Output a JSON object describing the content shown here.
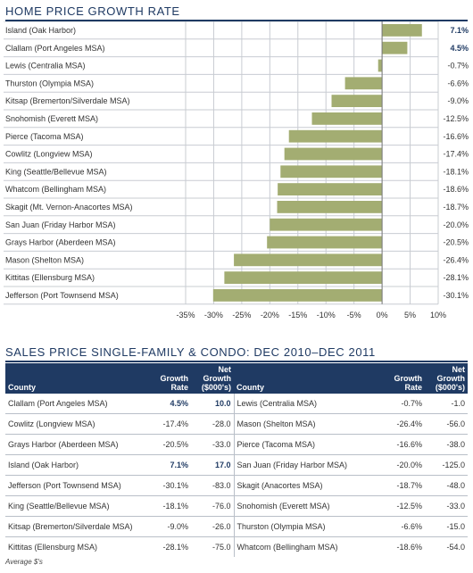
{
  "chart_title": "HOME PRICE GROWTH RATE",
  "chart_data": {
    "type": "bar",
    "orientation": "horizontal",
    "categories": [
      "Island (Oak Harbor)",
      "Clallam (Port Angeles MSA)",
      "Lewis (Centralia MSA)",
      "Thurston (Olympia MSA)",
      "Kitsap (Bremerton/Silverdale MSA)",
      "Snohomish (Everett MSA)",
      "Pierce (Tacoma MSA)",
      "Cowlitz (Longview MSA)",
      "King (Seattle/Bellevue MSA)",
      "Whatcom (Bellingham MSA)",
      "Skagit (Mt. Vernon-Anacortes MSA)",
      "San Juan (Friday Harbor MSA)",
      "Grays Harbor (Aberdeen MSA)",
      "Mason (Shelton MSA)",
      "Kittitas (Ellensburg MSA)",
      "Jefferson (Port Townsend MSA)"
    ],
    "values": [
      7.1,
      4.5,
      -0.7,
      -6.6,
      -9.0,
      -12.5,
      -16.6,
      -17.4,
      -18.1,
      -18.6,
      -18.7,
      -20.0,
      -20.5,
      -26.4,
      -28.1,
      -30.1
    ],
    "value_labels": [
      "7.1%",
      "4.5%",
      "-0.7%",
      "-6.6%",
      "-9.0%",
      "-12.5%",
      "-16.6%",
      "-17.4%",
      "-18.1%",
      "-18.6%",
      "-18.7%",
      "-20.0%",
      "-20.5%",
      "-26.4%",
      "-28.1%",
      "-30.1%"
    ],
    "xlim": [
      -35,
      10
    ],
    "xticks": [
      -35,
      -30,
      -25,
      -20,
      -15,
      -10,
      -5,
      0,
      5,
      10
    ],
    "xtick_labels": [
      "-35%",
      "-30%",
      "-25%",
      "-20%",
      "-15%",
      "-10%",
      "-5%",
      "0%",
      "5%",
      "10%"
    ],
    "bar_color": "#a3ad72",
    "grid": true,
    "legend": "none"
  },
  "table": {
    "title": "SALES PRICE SINGLE-FAMILY & CONDO: DEC 2010–DEC 2011",
    "headers": {
      "county": "County",
      "growth_l1": "Growth",
      "growth_l2": "Rate",
      "net_l1": "Net",
      "net_l2": "Growth",
      "net_l3": "($000's)"
    },
    "rows": [
      {
        "left": {
          "county": "Clallam (Port Angeles MSA)",
          "rate": "4.5%",
          "net": "10.0",
          "bold": true
        },
        "right": {
          "county": "Lewis (Centralia MSA)",
          "rate": "-0.7%",
          "net": "-1.0",
          "bold": false
        }
      },
      {
        "left": {
          "county": "Cowlitz (Longview MSA)",
          "rate": "-17.4%",
          "net": "-28.0",
          "bold": false
        },
        "right": {
          "county": "Mason (Shelton MSA)",
          "rate": "-26.4%",
          "net": "-56.0",
          "bold": false
        }
      },
      {
        "left": {
          "county": "Grays Harbor (Aberdeen MSA)",
          "rate": "-20.5%",
          "net": "-33.0",
          "bold": false
        },
        "right": {
          "county": "Pierce (Tacoma MSA)",
          "rate": "-16.6%",
          "net": "-38.0",
          "bold": false
        }
      },
      {
        "left": {
          "county": "Island (Oak Harbor)",
          "rate": "7.1%",
          "net": "17.0",
          "bold": true
        },
        "right": {
          "county": "San Juan (Friday Harbor MSA)",
          "rate": "-20.0%",
          "net": "-125.0",
          "bold": false
        }
      },
      {
        "left": {
          "county": "Jefferson (Port Townsend MSA)",
          "rate": "-30.1%",
          "net": "-83.0",
          "bold": false
        },
        "right": {
          "county": "Skagit (Anacortes MSA)",
          "rate": "-18.7%",
          "net": "-48.0",
          "bold": false
        }
      },
      {
        "left": {
          "county": "King (Seattle/Bellevue MSA)",
          "rate": "-18.1%",
          "net": "-76.0",
          "bold": false
        },
        "right": {
          "county": "Snohomish (Everett MSA)",
          "rate": "-12.5%",
          "net": "-33.0",
          "bold": false
        }
      },
      {
        "left": {
          "county": "Kitsap (Bremerton/Silverdale MSA)",
          "rate": "-9.0%",
          "net": "-26.0",
          "bold": false
        },
        "right": {
          "county": "Thurston (Olympia MSA)",
          "rate": "-6.6%",
          "net": "-15.0",
          "bold": false
        }
      },
      {
        "left": {
          "county": "Kittitas (Ellensburg MSA)",
          "rate": "-28.1%",
          "net": "-75.0",
          "bold": false
        },
        "right": {
          "county": "Whatcom (Bellingham MSA)",
          "rate": "-18.6%",
          "net": "-54.0",
          "bold": false
        }
      }
    ],
    "footnote": "Average $'s"
  },
  "colors": {
    "accent": "#1f3a63",
    "bar": "#a3ad72",
    "grid": "#c8ccd2"
  }
}
